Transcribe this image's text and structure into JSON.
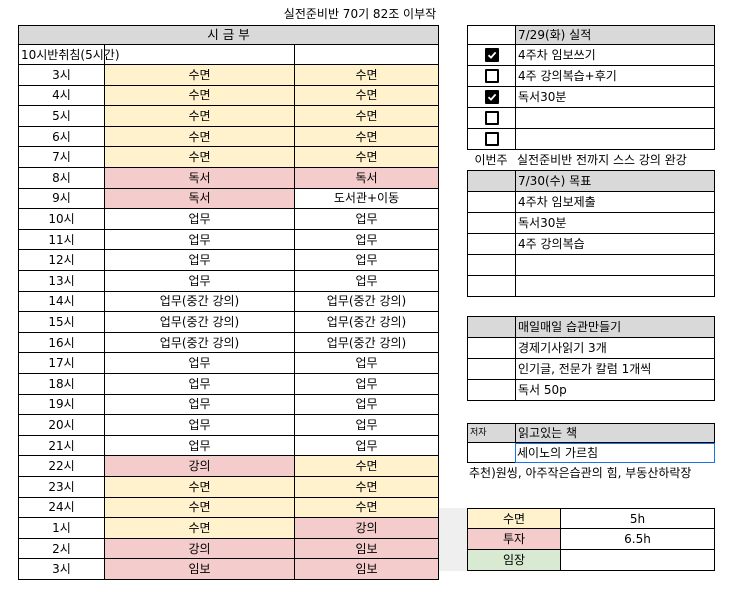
{
  "title": "실전준비반 70기 82조 이부작",
  "schedule": {
    "header": "시 금 부",
    "note": "10시반취침(5시간)",
    "rows": [
      {
        "time": "3시",
        "a": "수면",
        "b": "수면",
        "ac": "yel",
        "bc": "yel"
      },
      {
        "time": "4시",
        "a": "수면",
        "b": "수면",
        "ac": "yel",
        "bc": "yel"
      },
      {
        "time": "5시",
        "a": "수면",
        "b": "수면",
        "ac": "yel",
        "bc": "yel"
      },
      {
        "time": "6시",
        "a": "수면",
        "b": "수면",
        "ac": "yel",
        "bc": "yel"
      },
      {
        "time": "7시",
        "a": "수면",
        "b": "수면",
        "ac": "yel",
        "bc": "yel"
      },
      {
        "time": "8시",
        "a": "독서",
        "b": "독서",
        "ac": "pink",
        "bc": "pink"
      },
      {
        "time": "9시",
        "a": "독서",
        "b": "도서관+이동",
        "ac": "pink",
        "bc": ""
      },
      {
        "time": "10시",
        "a": "업무",
        "b": "업무",
        "ac": "",
        "bc": ""
      },
      {
        "time": "11시",
        "a": "업무",
        "b": "업무",
        "ac": "",
        "bc": ""
      },
      {
        "time": "12시",
        "a": "업무",
        "b": "업무",
        "ac": "",
        "bc": ""
      },
      {
        "time": "13시",
        "a": "업무",
        "b": "업무",
        "ac": "",
        "bc": ""
      },
      {
        "time": "14시",
        "a": "업무(중간 강의)",
        "b": "업무(중간 강의)",
        "ac": "",
        "bc": ""
      },
      {
        "time": "15시",
        "a": "업무(중간 강의)",
        "b": "업무(중간 강의)",
        "ac": "",
        "bc": ""
      },
      {
        "time": "16시",
        "a": "업무(중간 강의)",
        "b": "업무(중간 강의)",
        "ac": "",
        "bc": ""
      },
      {
        "time": "17시",
        "a": "업무",
        "b": "업무",
        "ac": "",
        "bc": ""
      },
      {
        "time": "18시",
        "a": "업무",
        "b": "업무",
        "ac": "",
        "bc": ""
      },
      {
        "time": "19시",
        "a": "업무",
        "b": "업무",
        "ac": "",
        "bc": ""
      },
      {
        "time": "20시",
        "a": "업무",
        "b": "업무",
        "ac": "",
        "bc": ""
      },
      {
        "time": "21시",
        "a": "업무",
        "b": "업무",
        "ac": "",
        "bc": ""
      },
      {
        "time": "22시",
        "a": "강의",
        "b": "수면",
        "ac": "pink",
        "bc": "yel"
      },
      {
        "time": "23시",
        "a": "수면",
        "b": "수면",
        "ac": "yel",
        "bc": "yel"
      },
      {
        "time": "24시",
        "a": "수면",
        "b": "수면",
        "ac": "yel",
        "bc": "yel"
      },
      {
        "time": "1시",
        "a": "수면",
        "b": "강의",
        "ac": "yel",
        "bc": "pink"
      },
      {
        "time": "2시",
        "a": "강의",
        "b": "임보",
        "ac": "pink",
        "bc": "pink"
      },
      {
        "time": "3시",
        "a": "임보",
        "b": "임보",
        "ac": "pink",
        "bc": "pink"
      }
    ]
  },
  "results": {
    "header": "7/29(화) 실적",
    "items": [
      {
        "checked": true,
        "text": "4주차 임보쓰기"
      },
      {
        "checked": false,
        "text": "4주 강의복습+후기"
      },
      {
        "checked": true,
        "text": "독서30분"
      },
      {
        "checked": false,
        "text": ""
      },
      {
        "checked": false,
        "text": ""
      }
    ],
    "this_week_label": "이번주",
    "this_week_text": "실전준비반 전까지 스스 강의 완강"
  },
  "goals": {
    "header": "7/30(수) 목표",
    "items": [
      "4주차 임보제출",
      "독서30분",
      "4주 강의복습",
      "",
      ""
    ]
  },
  "habits": {
    "header": "매일매일 습관만들기",
    "items": [
      "경제기사읽기 3개",
      "인기글, 전문가 칼럼 1개씩",
      "독서 50p"
    ]
  },
  "books": {
    "author_label": "저자",
    "header": "읽고있는 책",
    "current": "세이노의 가르침",
    "recommend": "추천)원씽, 아주작은습관의 힘, 부동산하락장"
  },
  "summary": [
    {
      "label": "수면",
      "value": "5h",
      "color": "yel"
    },
    {
      "label": "투자",
      "value": "6.5h",
      "color": "pink"
    },
    {
      "label": "임장",
      "value": "",
      "color": "green"
    }
  ],
  "colors": {
    "grey": "#d9d9d9",
    "yellow": "#fff2cc",
    "pink": "#f4cccc",
    "green": "#d9ead3"
  }
}
